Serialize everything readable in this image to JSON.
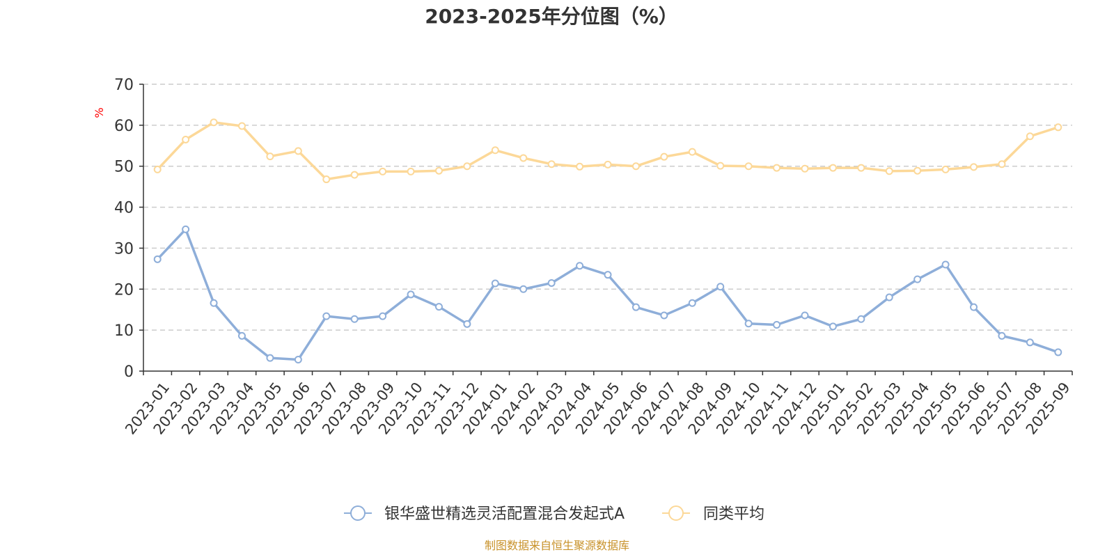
{
  "colors": {
    "series_fund": "#8eaed9",
    "series_avg": "#fcd898",
    "axis": "#333333",
    "grid": "#cccccc",
    "unit": "#ff0000",
    "source": "#c8922a",
    "title": "#333333"
  },
  "source_note": "制图数据来自恒生聚源数据库",
  "chart_data": {
    "type": "line",
    "title": "2023-2025年分位图（%）",
    "ylabel": "%",
    "xlabel": "",
    "ylim": [
      0,
      70
    ],
    "yticks": [
      0,
      10,
      20,
      30,
      40,
      50,
      60,
      70
    ],
    "grid": true,
    "legend_position": "bottom",
    "categories": [
      "2023-01",
      "2023-02",
      "2023-03",
      "2023-04",
      "2023-05",
      "2023-06",
      "2023-07",
      "2023-08",
      "2023-09",
      "2023-10",
      "2023-11",
      "2023-12",
      "2024-01",
      "2024-02",
      "2024-03",
      "2024-04",
      "2024-05",
      "2024-06",
      "2024-07",
      "2024-08",
      "2024-09",
      "2024-10",
      "2024-11",
      "2024-12",
      "2025-01",
      "2025-02",
      "2025-03",
      "2025-04",
      "2025-05",
      "2025-06",
      "2025-07",
      "2025-08",
      "2025-09"
    ],
    "series": [
      {
        "name": "银华盛世精选灵活配置混合发起式A",
        "values": [
          27.3,
          34.6,
          16.6,
          8.6,
          3.2,
          2.8,
          13.4,
          12.7,
          13.4,
          18.7,
          15.7,
          11.5,
          21.4,
          20.0,
          21.5,
          25.7,
          23.5,
          15.6,
          13.6,
          16.6,
          20.6,
          11.6,
          11.3,
          13.6,
          10.9,
          12.7,
          18.0,
          22.4,
          26.0,
          15.6,
          8.6,
          7.0,
          4.6
        ]
      },
      {
        "name": "同类平均",
        "values": [
          49.2,
          56.5,
          60.7,
          59.8,
          52.4,
          53.7,
          46.8,
          47.9,
          48.7,
          48.7,
          48.9,
          50.0,
          53.9,
          52.0,
          50.5,
          49.9,
          50.4,
          50.0,
          52.3,
          53.5,
          50.1,
          50.0,
          49.6,
          49.4,
          49.6,
          49.6,
          48.8,
          48.9,
          49.2,
          49.8,
          50.5,
          57.3,
          59.5
        ]
      }
    ]
  }
}
